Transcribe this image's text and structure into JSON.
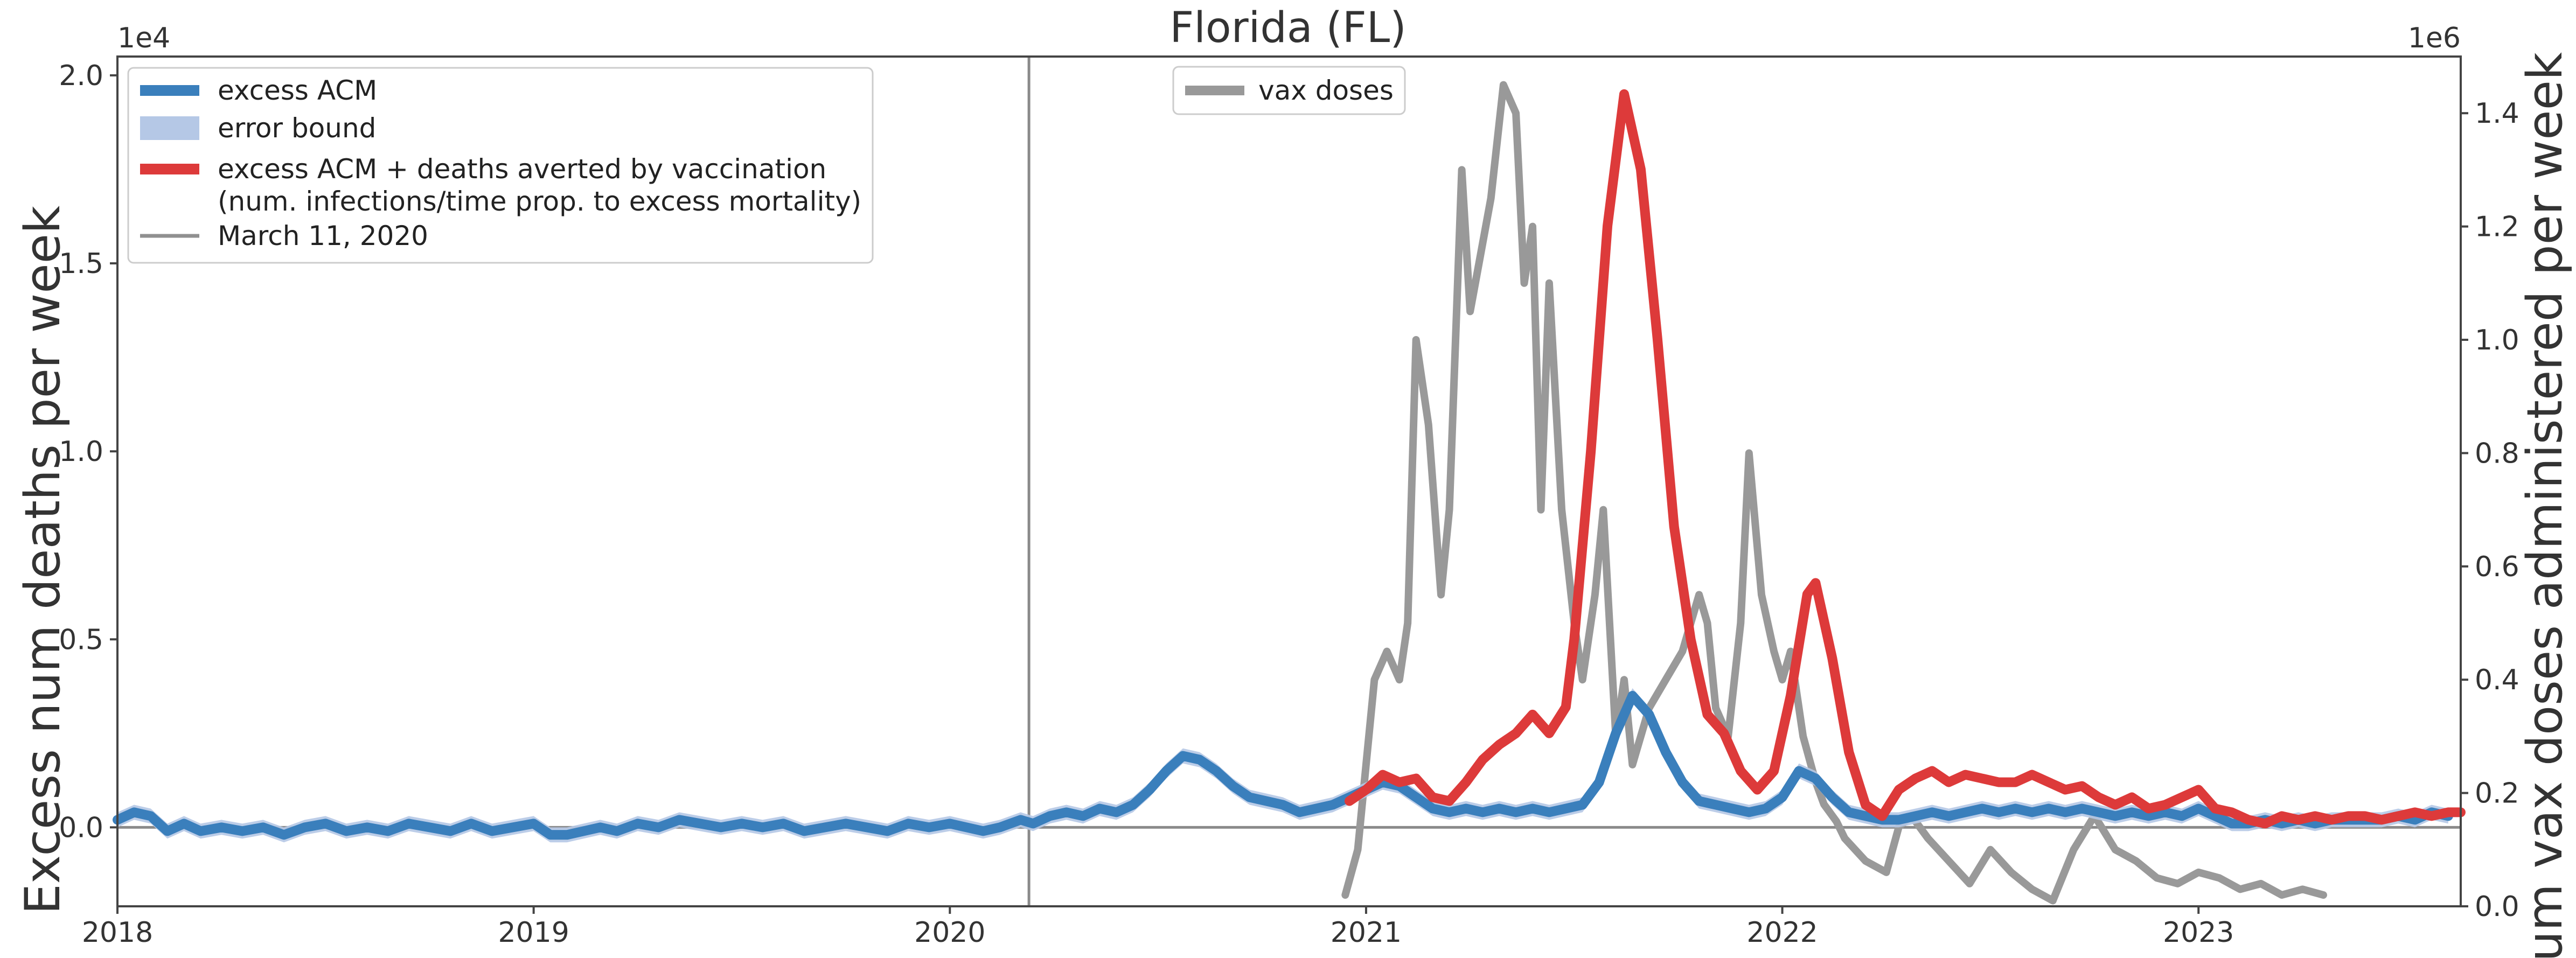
{
  "chart_data": {
    "type": "line",
    "title": "Florida (FL)",
    "ylabel_left": "Excess num deaths per week",
    "ylabel_right": "Num vax doses administered per week",
    "ylim_left": [
      -0.21,
      2.05
    ],
    "ylim_right": [
      0,
      1.5
    ],
    "xlim": [
      2018.0,
      2023.63
    ],
    "y_multiplier_left": "1e4",
    "y_multiplier_right": "1e6",
    "x_ticks": [
      2018,
      2019,
      2020,
      2021,
      2022,
      2023
    ],
    "x_tick_labels": [
      "2018",
      "2019",
      "2020",
      "2021",
      "2022",
      "2023"
    ],
    "y_ticks_left": [
      0.0,
      0.5,
      1.0,
      1.5,
      2.0
    ],
    "y_tick_labels_left": [
      "0.0",
      "0.5",
      "1.0",
      "1.5",
      "2.0"
    ],
    "y_ticks_right": [
      0.0,
      0.2,
      0.4,
      0.6,
      0.8,
      1.0,
      1.2,
      1.4
    ],
    "y_tick_labels_right": [
      "0.0",
      "0.2",
      "0.4",
      "0.6",
      "0.8",
      "1.0",
      "1.2",
      "1.4"
    ],
    "vertical_line_x": 2020.19,
    "horizontal_line_y": 0.0,
    "grid": false,
    "legend_left": {
      "placement": "top-left",
      "items": [
        {
          "label": "excess ACM",
          "color": "#3a7fbc",
          "style": "thick-line"
        },
        {
          "label": "error bound",
          "color": "#b5c8e6",
          "style": "patch"
        },
        {
          "label": "excess ACM + deaths averted by vaccination",
          "label2": "(num. infections/time prop. to excess mortality)",
          "color": "#dd3a3a",
          "style": "thick-line"
        },
        {
          "label": "March 11, 2020",
          "color": "#909090",
          "style": "thin-line"
        }
      ]
    },
    "legend_right": {
      "placement": "top-center",
      "items": [
        {
          "label": "vax doses",
          "color": "#999999",
          "style": "thick-line"
        }
      ]
    },
    "series": [
      {
        "name": "excess ACM",
        "axis": "left",
        "color": "#3a7fbc",
        "points": [
          [
            2018.0,
            0.02
          ],
          [
            2018.04,
            0.04
          ],
          [
            2018.08,
            0.03
          ],
          [
            2018.12,
            -0.01
          ],
          [
            2018.16,
            0.01
          ],
          [
            2018.2,
            -0.01
          ],
          [
            2018.25,
            0.0
          ],
          [
            2018.3,
            -0.01
          ],
          [
            2018.35,
            0.0
          ],
          [
            2018.4,
            -0.02
          ],
          [
            2018.45,
            0.0
          ],
          [
            2018.5,
            0.01
          ],
          [
            2018.55,
            -0.01
          ],
          [
            2018.6,
            0.0
          ],
          [
            2018.65,
            -0.01
          ],
          [
            2018.7,
            0.01
          ],
          [
            2018.75,
            0.0
          ],
          [
            2018.8,
            -0.01
          ],
          [
            2018.85,
            0.01
          ],
          [
            2018.9,
            -0.01
          ],
          [
            2018.95,
            0.0
          ],
          [
            2019.0,
            0.01
          ],
          [
            2019.04,
            -0.02
          ],
          [
            2019.08,
            -0.02
          ],
          [
            2019.12,
            -0.01
          ],
          [
            2019.16,
            0.0
          ],
          [
            2019.2,
            -0.01
          ],
          [
            2019.25,
            0.01
          ],
          [
            2019.3,
            0.0
          ],
          [
            2019.35,
            0.02
          ],
          [
            2019.4,
            0.01
          ],
          [
            2019.45,
            0.0
          ],
          [
            2019.5,
            0.01
          ],
          [
            2019.55,
            0.0
          ],
          [
            2019.6,
            0.01
          ],
          [
            2019.65,
            -0.01
          ],
          [
            2019.7,
            0.0
          ],
          [
            2019.75,
            0.01
          ],
          [
            2019.8,
            0.0
          ],
          [
            2019.85,
            -0.01
          ],
          [
            2019.9,
            0.01
          ],
          [
            2019.95,
            0.0
          ],
          [
            2020.0,
            0.01
          ],
          [
            2020.04,
            0.0
          ],
          [
            2020.08,
            -0.01
          ],
          [
            2020.12,
            0.0
          ],
          [
            2020.17,
            0.02
          ],
          [
            2020.2,
            0.01
          ],
          [
            2020.24,
            0.03
          ],
          [
            2020.28,
            0.04
          ],
          [
            2020.32,
            0.03
          ],
          [
            2020.36,
            0.05
          ],
          [
            2020.4,
            0.04
          ],
          [
            2020.44,
            0.06
          ],
          [
            2020.48,
            0.1
          ],
          [
            2020.52,
            0.15
          ],
          [
            2020.56,
            0.19
          ],
          [
            2020.6,
            0.18
          ],
          [
            2020.64,
            0.15
          ],
          [
            2020.68,
            0.11
          ],
          [
            2020.72,
            0.08
          ],
          [
            2020.76,
            0.07
          ],
          [
            2020.8,
            0.06
          ],
          [
            2020.84,
            0.04
          ],
          [
            2020.88,
            0.05
          ],
          [
            2020.92,
            0.06
          ],
          [
            2020.96,
            0.08
          ],
          [
            2021.0,
            0.1
          ],
          [
            2021.04,
            0.12
          ],
          [
            2021.08,
            0.11
          ],
          [
            2021.12,
            0.08
          ],
          [
            2021.16,
            0.05
          ],
          [
            2021.2,
            0.04
          ],
          [
            2021.24,
            0.05
          ],
          [
            2021.28,
            0.04
          ],
          [
            2021.32,
            0.05
          ],
          [
            2021.36,
            0.04
          ],
          [
            2021.4,
            0.05
          ],
          [
            2021.44,
            0.04
          ],
          [
            2021.48,
            0.05
          ],
          [
            2021.52,
            0.06
          ],
          [
            2021.56,
            0.12
          ],
          [
            2021.6,
            0.25
          ],
          [
            2021.64,
            0.35
          ],
          [
            2021.68,
            0.3
          ],
          [
            2021.72,
            0.2
          ],
          [
            2021.76,
            0.12
          ],
          [
            2021.8,
            0.07
          ],
          [
            2021.84,
            0.06
          ],
          [
            2021.88,
            0.05
          ],
          [
            2021.92,
            0.04
          ],
          [
            2021.96,
            0.05
          ],
          [
            2022.0,
            0.08
          ],
          [
            2022.04,
            0.15
          ],
          [
            2022.08,
            0.13
          ],
          [
            2022.12,
            0.08
          ],
          [
            2022.16,
            0.04
          ],
          [
            2022.2,
            0.03
          ],
          [
            2022.24,
            0.02
          ],
          [
            2022.28,
            0.02
          ],
          [
            2022.32,
            0.03
          ],
          [
            2022.36,
            0.04
          ],
          [
            2022.4,
            0.03
          ],
          [
            2022.44,
            0.04
          ],
          [
            2022.48,
            0.05
          ],
          [
            2022.52,
            0.04
          ],
          [
            2022.56,
            0.05
          ],
          [
            2022.6,
            0.04
          ],
          [
            2022.64,
            0.05
          ],
          [
            2022.68,
            0.04
          ],
          [
            2022.72,
            0.05
          ],
          [
            2022.76,
            0.04
          ],
          [
            2022.8,
            0.03
          ],
          [
            2022.84,
            0.04
          ],
          [
            2022.88,
            0.03
          ],
          [
            2022.92,
            0.04
          ],
          [
            2022.96,
            0.03
          ],
          [
            2023.0,
            0.05
          ],
          [
            2023.04,
            0.03
          ],
          [
            2023.08,
            0.01
          ],
          [
            2023.12,
            0.01
          ],
          [
            2023.16,
            0.02
          ],
          [
            2023.2,
            0.01
          ],
          [
            2023.24,
            0.02
          ],
          [
            2023.28,
            0.01
          ],
          [
            2023.32,
            0.02
          ],
          [
            2023.36,
            0.02
          ],
          [
            2023.4,
            0.02
          ],
          [
            2023.44,
            0.02
          ],
          [
            2023.48,
            0.03
          ],
          [
            2023.52,
            0.02
          ],
          [
            2023.56,
            0.04
          ],
          [
            2023.6,
            0.03
          ]
        ]
      },
      {
        "name": "excess ACM + deaths averted by vaccination",
        "axis": "left",
        "color": "#dd3a3a",
        "points": [
          [
            2020.96,
            0.07
          ],
          [
            2021.0,
            0.1
          ],
          [
            2021.04,
            0.14
          ],
          [
            2021.08,
            0.12
          ],
          [
            2021.12,
            0.13
          ],
          [
            2021.16,
            0.08
          ],
          [
            2021.2,
            0.07
          ],
          [
            2021.24,
            0.12
          ],
          [
            2021.28,
            0.18
          ],
          [
            2021.32,
            0.22
          ],
          [
            2021.36,
            0.25
          ],
          [
            2021.4,
            0.3
          ],
          [
            2021.44,
            0.25
          ],
          [
            2021.48,
            0.32
          ],
          [
            2021.5,
            0.5
          ],
          [
            2021.54,
            1.0
          ],
          [
            2021.58,
            1.6
          ],
          [
            2021.62,
            1.95
          ],
          [
            2021.66,
            1.75
          ],
          [
            2021.7,
            1.3
          ],
          [
            2021.74,
            0.8
          ],
          [
            2021.78,
            0.5
          ],
          [
            2021.82,
            0.3
          ],
          [
            2021.86,
            0.25
          ],
          [
            2021.9,
            0.15
          ],
          [
            2021.94,
            0.1
          ],
          [
            2021.98,
            0.15
          ],
          [
            2022.02,
            0.35
          ],
          [
            2022.06,
            0.62
          ],
          [
            2022.08,
            0.65
          ],
          [
            2022.12,
            0.45
          ],
          [
            2022.16,
            0.2
          ],
          [
            2022.2,
            0.06
          ],
          [
            2022.24,
            0.03
          ],
          [
            2022.28,
            0.1
          ],
          [
            2022.32,
            0.13
          ],
          [
            2022.36,
            0.15
          ],
          [
            2022.4,
            0.12
          ],
          [
            2022.44,
            0.14
          ],
          [
            2022.48,
            0.13
          ],
          [
            2022.52,
            0.12
          ],
          [
            2022.56,
            0.12
          ],
          [
            2022.6,
            0.14
          ],
          [
            2022.64,
            0.12
          ],
          [
            2022.68,
            0.1
          ],
          [
            2022.72,
            0.11
          ],
          [
            2022.76,
            0.08
          ],
          [
            2022.8,
            0.06
          ],
          [
            2022.84,
            0.08
          ],
          [
            2022.88,
            0.05
          ],
          [
            2022.92,
            0.06
          ],
          [
            2022.96,
            0.08
          ],
          [
            2023.0,
            0.1
          ],
          [
            2023.04,
            0.05
          ],
          [
            2023.08,
            0.04
          ],
          [
            2023.12,
            0.02
          ],
          [
            2023.16,
            0.01
          ],
          [
            2023.2,
            0.03
          ],
          [
            2023.24,
            0.02
          ],
          [
            2023.28,
            0.03
          ],
          [
            2023.32,
            0.02
          ],
          [
            2023.36,
            0.03
          ],
          [
            2023.4,
            0.03
          ],
          [
            2023.44,
            0.02
          ],
          [
            2023.48,
            0.03
          ],
          [
            2023.52,
            0.04
          ],
          [
            2023.56,
            0.03
          ],
          [
            2023.6,
            0.04
          ],
          [
            2023.63,
            0.04
          ]
        ]
      },
      {
        "name": "vax doses",
        "axis": "right",
        "color": "#999999",
        "points": [
          [
            2020.95,
            0.02
          ],
          [
            2020.98,
            0.1
          ],
          [
            2021.0,
            0.25
          ],
          [
            2021.02,
            0.4
          ],
          [
            2021.05,
            0.45
          ],
          [
            2021.08,
            0.4
          ],
          [
            2021.1,
            0.5
          ],
          [
            2021.12,
            1.0
          ],
          [
            2021.15,
            0.85
          ],
          [
            2021.18,
            0.55
          ],
          [
            2021.2,
            0.7
          ],
          [
            2021.23,
            1.3
          ],
          [
            2021.25,
            1.05
          ],
          [
            2021.3,
            1.25
          ],
          [
            2021.33,
            1.45
          ],
          [
            2021.36,
            1.4
          ],
          [
            2021.38,
            1.1
          ],
          [
            2021.4,
            1.2
          ],
          [
            2021.42,
            0.7
          ],
          [
            2021.44,
            1.1
          ],
          [
            2021.47,
            0.7
          ],
          [
            2021.5,
            0.5
          ],
          [
            2021.52,
            0.4
          ],
          [
            2021.55,
            0.55
          ],
          [
            2021.57,
            0.7
          ],
          [
            2021.6,
            0.3
          ],
          [
            2021.62,
            0.4
          ],
          [
            2021.64,
            0.25
          ],
          [
            2021.68,
            0.35
          ],
          [
            2021.72,
            0.4
          ],
          [
            2021.76,
            0.45
          ],
          [
            2021.8,
            0.55
          ],
          [
            2021.82,
            0.5
          ],
          [
            2021.84,
            0.35
          ],
          [
            2021.87,
            0.3
          ],
          [
            2021.9,
            0.5
          ],
          [
            2021.92,
            0.8
          ],
          [
            2021.95,
            0.55
          ],
          [
            2021.98,
            0.45
          ],
          [
            2022.0,
            0.4
          ],
          [
            2022.02,
            0.45
          ],
          [
            2022.05,
            0.3
          ],
          [
            2022.08,
            0.22
          ],
          [
            2022.1,
            0.18
          ],
          [
            2022.13,
            0.15
          ],
          [
            2022.15,
            0.12
          ],
          [
            2022.2,
            0.08
          ],
          [
            2022.25,
            0.06
          ],
          [
            2022.28,
            0.14
          ],
          [
            2022.31,
            0.16
          ],
          [
            2022.35,
            0.12
          ],
          [
            2022.4,
            0.08
          ],
          [
            2022.45,
            0.04
          ],
          [
            2022.5,
            0.1
          ],
          [
            2022.55,
            0.06
          ],
          [
            2022.6,
            0.03
          ],
          [
            2022.65,
            0.01
          ],
          [
            2022.7,
            0.1
          ],
          [
            2022.75,
            0.16
          ],
          [
            2022.8,
            0.1
          ],
          [
            2022.85,
            0.08
          ],
          [
            2022.9,
            0.05
          ],
          [
            2022.95,
            0.04
          ],
          [
            2023.0,
            0.06
          ],
          [
            2023.05,
            0.05
          ],
          [
            2023.1,
            0.03
          ],
          [
            2023.15,
            0.04
          ],
          [
            2023.2,
            0.02
          ],
          [
            2023.25,
            0.03
          ],
          [
            2023.3,
            0.02
          ]
        ]
      }
    ]
  }
}
